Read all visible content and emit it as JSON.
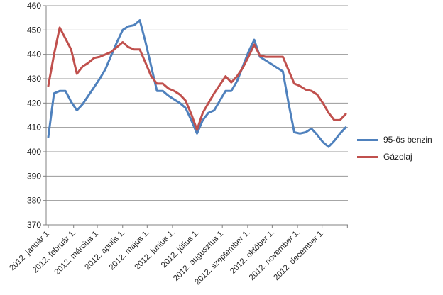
{
  "chart_data": {
    "type": "line",
    "title": "",
    "xlabel": "",
    "ylabel": "",
    "grid": "horizontal",
    "legend_position": "right",
    "y_axis": {
      "min": 370,
      "max": 460,
      "tick_step": 10,
      "tick_labels": [
        370,
        380,
        390,
        400,
        410,
        420,
        430,
        440,
        450,
        460
      ]
    },
    "x_axis": {
      "point_interval": "weekly",
      "points_per_series": 53,
      "month_labels": [
        "2012. január 1.",
        "2012. február 1.",
        "2012. március 1.",
        "2012. április 1.",
        "2012. május 1.",
        "2012. június 1.",
        "2012. július 1.",
        "2012. augusztus 1.",
        "2012. szeptember 1.",
        "2012. október 1.",
        "2012. november 1.",
        "2012. december 1."
      ],
      "month_week_positions": [
        0,
        4.43,
        8.57,
        13.0,
        17.29,
        21.71,
        26.0,
        30.43,
        34.86,
        39.14,
        43.57,
        47.86
      ],
      "end_tick_week_position": 52.29
    },
    "series": [
      {
        "name": "95-ös benzin",
        "color": "#4F81BD",
        "values": [
          406,
          424,
          425,
          425,
          420.5,
          417,
          419.5,
          423,
          426.5,
          430,
          434,
          439.5,
          445,
          450,
          451.5,
          452,
          454,
          445,
          435,
          425,
          425,
          423,
          421.5,
          420,
          418,
          413,
          407.5,
          413,
          416,
          417,
          421,
          425,
          425,
          429,
          435,
          441,
          446,
          439,
          437.5,
          436,
          434.5,
          433,
          420,
          408,
          407.5,
          408,
          409.5,
          407,
          404,
          402,
          404.5,
          407.5,
          410
        ]
      },
      {
        "name": "Gázolaj",
        "color": "#C0504D",
        "values": [
          427,
          440,
          451,
          446.5,
          442,
          432,
          435,
          436.5,
          438.5,
          439,
          440,
          441,
          443,
          445,
          443,
          442,
          442,
          436.5,
          431,
          428,
          428,
          426,
          425,
          423.5,
          421,
          415.5,
          409,
          416,
          420,
          424,
          427.5,
          431,
          428.5,
          431,
          434.5,
          439,
          444,
          439.5,
          439,
          439,
          439,
          439,
          433.5,
          428,
          427,
          425.5,
          425,
          423.5,
          420,
          416,
          413,
          413,
          415.5
        ]
      }
    ]
  },
  "colors": {
    "background": "#FFFFFF",
    "gridline": "#999999",
    "axis": "#808080",
    "text": "#262626",
    "series_benzin": "#4F81BD",
    "series_gazolaj": "#C0504D"
  }
}
